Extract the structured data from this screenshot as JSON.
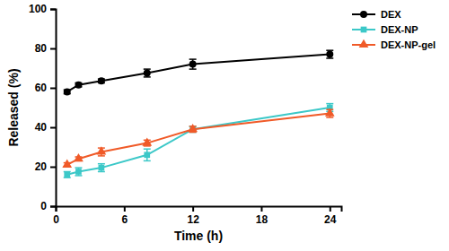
{
  "chart_data": {
    "type": "line",
    "x_label": "Time (h)",
    "y_label": "Released (%)",
    "x": [
      1,
      2,
      4,
      8,
      12,
      24
    ],
    "xlim": [
      0,
      25
    ],
    "xticks": [
      0,
      6,
      12,
      18,
      24
    ],
    "ylim": [
      0,
      100
    ],
    "yticks": [
      0,
      20,
      40,
      60,
      80,
      100
    ],
    "grid": false,
    "legend": "right",
    "series": [
      {
        "name": "DEX",
        "color": "#000000",
        "marker": "circle",
        "line_style": "solid",
        "values": [
          58,
          61.5,
          63.5,
          67.5,
          72,
          77
        ],
        "errors": [
          1,
          1,
          1,
          2,
          2.5,
          2
        ]
      },
      {
        "name": "DEX-NP",
        "color": "#3cc8c8",
        "marker": "square",
        "line_style": "solid",
        "values": [
          16,
          17.5,
          19.5,
          26,
          39,
          50
        ],
        "errors": [
          1.5,
          2,
          2,
          3,
          1.5,
          2
        ]
      },
      {
        "name": "DEX-NP-gel",
        "color": "#f05a28",
        "marker": "triangle",
        "line_style": "solid",
        "values": [
          21,
          24,
          27.5,
          32,
          39,
          47
        ],
        "errors": [
          1,
          1,
          2,
          1.5,
          1.5,
          2
        ]
      }
    ]
  }
}
